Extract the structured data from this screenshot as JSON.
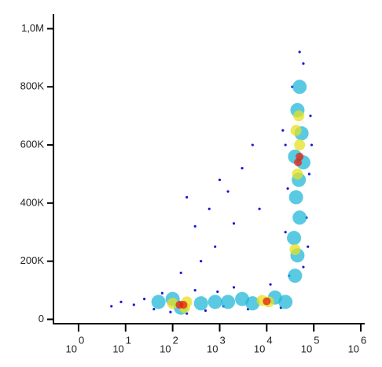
{
  "chart_data": {
    "type": "scatter",
    "x_log": true,
    "xlim": [
      0.316,
      1120000
    ],
    "xticks": [
      {
        "value": 1,
        "label": "10",
        "sup": "0"
      },
      {
        "value": 10,
        "label": "10",
        "sup": "1"
      },
      {
        "value": 100,
        "label": "10",
        "sup": "2"
      },
      {
        "value": 1000,
        "label": "10",
        "sup": "3"
      },
      {
        "value": 10000,
        "label": "10",
        "sup": "4"
      },
      {
        "value": 100000,
        "label": "10",
        "sup": "5"
      },
      {
        "value": 1000000,
        "label": "10",
        "sup": "6"
      }
    ],
    "ylim": [
      -15000,
      1050000
    ],
    "yticks": [
      {
        "value": 0,
        "label": "0"
      },
      {
        "value": 200000,
        "label": "200K"
      },
      {
        "value": 400000,
        "label": "400K"
      },
      {
        "value": 600000,
        "label": "600K"
      },
      {
        "value": 800000,
        "label": "800K"
      },
      {
        "value": 1000000,
        "label": "1,0M"
      }
    ],
    "series": [
      {
        "color": "#1a1ad8",
        "radius": 1.6,
        "x": [
          15,
          25,
          40,
          60,
          90,
          300,
          500,
          900,
          2000,
          4000,
          12000,
          20000,
          8,
          5,
          200,
          1200,
          30000,
          60000,
          25000,
          70000,
          28000,
          80000,
          25000,
          85000,
          35000,
          60000,
          50000,
          90000,
          22000,
          75000,
          300,
          200,
          600,
          1500,
          3000,
          5000,
          800,
          2000,
          400,
          7000,
          1000,
          150
        ],
        "y": [
          50000,
          70000,
          35000,
          90000,
          25000,
          100000,
          30000,
          95000,
          110000,
          35000,
          120000,
          40000,
          60000,
          45000,
          20000,
          45000,
          150000,
          180000,
          300000,
          350000,
          450000,
          500000,
          600000,
          700000,
          800000,
          880000,
          920000,
          600000,
          650000,
          250000,
          320000,
          420000,
          380000,
          440000,
          520000,
          600000,
          250000,
          330000,
          200000,
          380000,
          480000,
          160000
        ]
      },
      {
        "color": "#22b8d8",
        "radius": 9,
        "x": [
          50,
          100,
          150,
          400,
          800,
          1500,
          3000,
          5000,
          15000,
          25000,
          40000,
          45000,
          38000,
          50000,
          42000,
          48000,
          40000,
          55000,
          45000,
          50000,
          60000
        ],
        "y": [
          60000,
          70000,
          40000,
          55000,
          60000,
          60000,
          70000,
          55000,
          75000,
          60000,
          150000,
          220000,
          280000,
          350000,
          420000,
          480000,
          560000,
          640000,
          720000,
          800000,
          540000
        ]
      },
      {
        "color": "#e6e020",
        "radius": 7,
        "x": [
          100,
          200,
          180,
          8000,
          11000,
          45000,
          50000,
          42000,
          48000,
          40000
        ],
        "y": [
          55000,
          60000,
          40000,
          65000,
          60000,
          500000,
          600000,
          650000,
          700000,
          240000
        ]
      },
      {
        "color": "#e82010",
        "radius": 5,
        "x": [
          140,
          170,
          50000,
          46000,
          10000
        ],
        "y": [
          50000,
          50000,
          560000,
          540000,
          62000
        ]
      }
    ]
  }
}
